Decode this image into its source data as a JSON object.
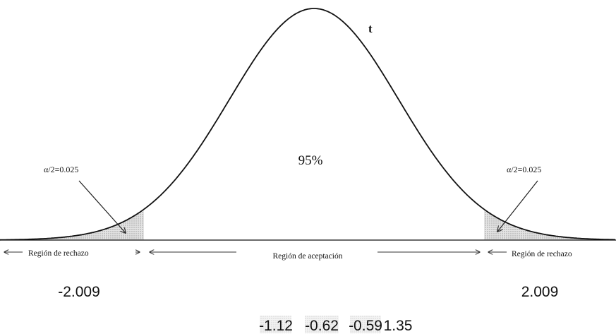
{
  "curve_label": "t",
  "center_label": "95%",
  "tails": [
    {
      "label": "α/2=0.025"
    },
    {
      "label": "α/2=0.025"
    }
  ],
  "regions": [
    "Región de rechazo",
    "Región de aceptación",
    "Región de rechazo"
  ],
  "critical_values": [
    "-2.009",
    "2.009"
  ],
  "sample_values": [
    "-1.12",
    "-0.62",
    "-0.59",
    "1.35"
  ]
}
